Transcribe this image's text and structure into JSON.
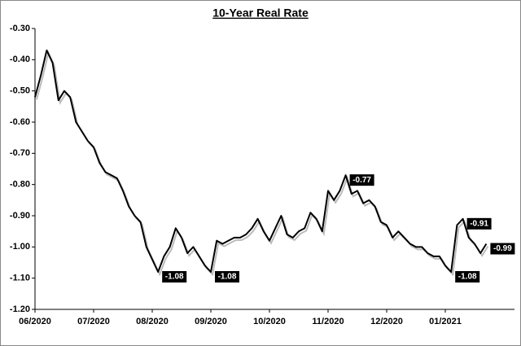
{
  "chart_data": {
    "type": "line",
    "title": "10-Year Real Rate",
    "categories": [
      "06/2020",
      null,
      null,
      null,
      null,
      null,
      null,
      null,
      null,
      null,
      "07/2020",
      null,
      null,
      null,
      null,
      null,
      null,
      null,
      null,
      null,
      "08/2020",
      null,
      null,
      null,
      null,
      null,
      null,
      null,
      null,
      null,
      "09/2020",
      null,
      null,
      null,
      null,
      null,
      null,
      null,
      null,
      null,
      "10/2020",
      null,
      null,
      null,
      null,
      null,
      null,
      null,
      null,
      null,
      "11/2020",
      null,
      null,
      null,
      null,
      null,
      null,
      null,
      null,
      null,
      "12/2020",
      null,
      null,
      null,
      null,
      null,
      null,
      null,
      null,
      null,
      "01/2021",
      null,
      null,
      null,
      null,
      null,
      null,
      null
    ],
    "series": [
      {
        "name": "10-Year Real Rate",
        "color": "#000000",
        "values": [
          -0.52,
          -0.45,
          -0.37,
          -0.41,
          -0.53,
          -0.5,
          -0.52,
          -0.6,
          -0.63,
          -0.66,
          -0.68,
          -0.73,
          -0.76,
          -0.77,
          -0.78,
          -0.82,
          -0.87,
          -0.9,
          -0.92,
          -1.0,
          -1.04,
          -1.08,
          -1.03,
          -1.0,
          -0.94,
          -0.97,
          -1.02,
          -1.0,
          -1.03,
          -1.06,
          -1.08,
          -0.98,
          -0.99,
          -0.98,
          -0.97,
          -0.97,
          -0.96,
          -0.94,
          -0.91,
          -0.95,
          -0.98,
          -0.94,
          -0.9,
          -0.96,
          -0.97,
          -0.95,
          -0.94,
          -0.89,
          -0.91,
          -0.95,
          -0.82,
          -0.85,
          -0.82,
          -0.77,
          -0.83,
          -0.82,
          -0.86,
          -0.85,
          -0.87,
          -0.92,
          -0.93,
          -0.97,
          -0.95,
          -0.97,
          -0.99,
          -1.0,
          -1.0,
          -1.02,
          -1.03,
          -1.03,
          -1.06,
          -1.08,
          -0.93,
          -0.91,
          -0.97,
          -0.99,
          -1.02,
          -0.99
        ],
        "value_labels": [
          null,
          null,
          null,
          null,
          null,
          null,
          null,
          null,
          null,
          null,
          null,
          null,
          null,
          null,
          null,
          null,
          null,
          null,
          null,
          null,
          null,
          "-1.08",
          null,
          null,
          null,
          null,
          null,
          null,
          null,
          null,
          "-1.08",
          null,
          null,
          null,
          null,
          null,
          null,
          null,
          null,
          null,
          null,
          null,
          null,
          null,
          null,
          null,
          null,
          null,
          null,
          null,
          null,
          null,
          null,
          "-0.77",
          null,
          null,
          null,
          null,
          null,
          null,
          null,
          null,
          null,
          null,
          null,
          null,
          null,
          null,
          null,
          null,
          null,
          "-1.08",
          null,
          "-0.91",
          null,
          null,
          null,
          "-0.99"
        ]
      }
    ],
    "ylim": [
      -1.2,
      -0.3
    ],
    "yticks": [
      {
        "value": -1.2,
        "label": "-1.20"
      },
      {
        "value": -1.1,
        "label": "-1.10"
      },
      {
        "value": -1.0,
        "label": "-1.00"
      },
      {
        "value": -0.9,
        "label": "-0.90"
      },
      {
        "value": -0.8,
        "label": "-0.80"
      },
      {
        "value": -0.7,
        "label": "-0.70"
      },
      {
        "value": -0.6,
        "label": "-0.60"
      },
      {
        "value": -0.5,
        "label": "-0.50"
      },
      {
        "value": -0.4,
        "label": "-0.40"
      },
      {
        "value": -0.3,
        "label": "-0.30"
      }
    ],
    "grid": false
  }
}
